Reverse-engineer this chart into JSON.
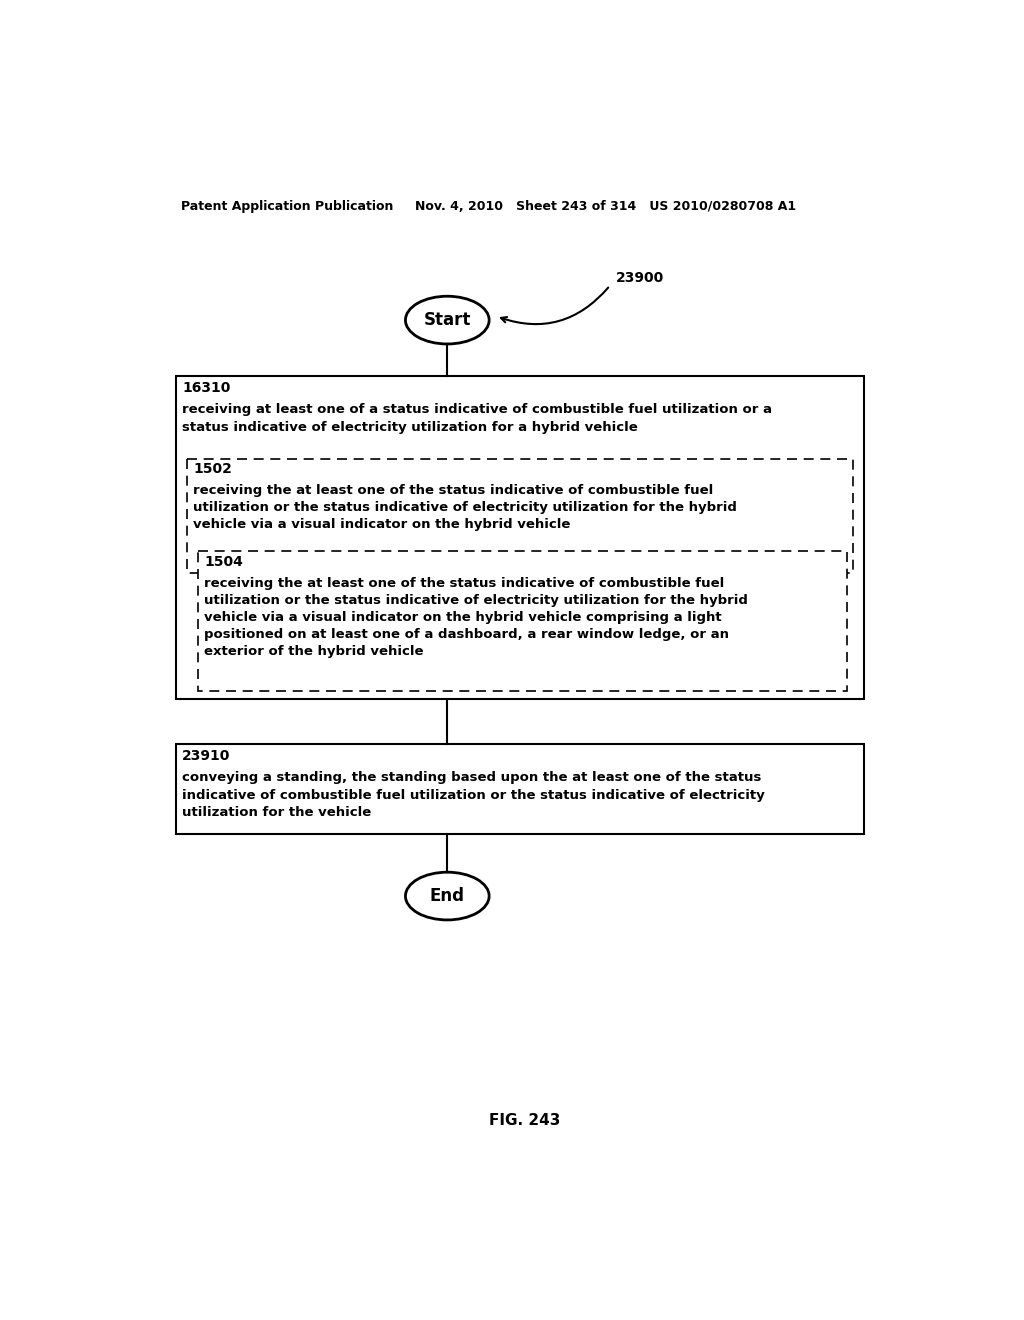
{
  "header_left": "Patent Application Publication",
  "header_mid": "Nov. 4, 2010   Sheet 243 of 314   US 2010/0280708 A1",
  "fig_label": "FIG. 243",
  "start_label": "Start",
  "end_label": "End",
  "callout_label": "23900",
  "box1_id": "16310",
  "box1_text": "receiving at least one of a status indicative of combustible fuel utilization or a\nstatus indicative of electricity utilization for a hybrid vehicle",
  "box2_id": "1502",
  "box2_text": "receiving the at least one of the status indicative of combustible fuel\nutilization or the status indicative of electricity utilization for the hybrid\nvehicle via a visual indicator on the hybrid vehicle",
  "box3_id": "1504",
  "box3_text": "receiving the at least one of the status indicative of combustible fuel\nutilization or the status indicative of electricity utilization for the hybrid\nvehicle via a visual indicator on the hybrid vehicle comprising a light\npositioned on at least one of a dashboard, a rear window ledge, or an\nexterior of the hybrid vehicle",
  "box4_id": "23910",
  "box4_text": "conveying a standing, the standing based upon the at least one of the status\nindicative of combustible fuel utilization or the status indicative of electricity\nutilization for the vehicle",
  "bg_color": "#ffffff",
  "text_color": "#000000"
}
